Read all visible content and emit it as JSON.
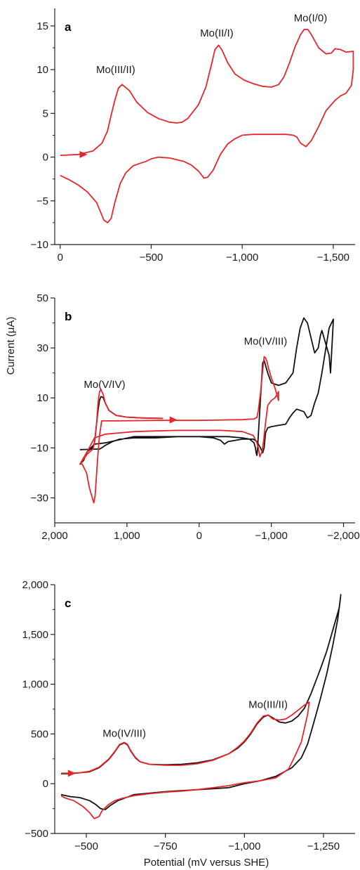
{
  "colors": {
    "red": "#e8262a",
    "black": "#111111",
    "axis": "#222222"
  },
  "xlabel": "Potential (mV versus SHE)",
  "chart_data": [
    {
      "type": "line",
      "panel": "a",
      "xlabel": "",
      "ylabel": "",
      "xlim": [
        30,
        -1620
      ],
      "ylim": [
        -10,
        17
      ],
      "xticks": [
        0,
        -500,
        -1000,
        -1500
      ],
      "xtick_labels": [
        "0",
        "−500",
        "−1,000",
        "−1,500"
      ],
      "yticks": [
        15,
        10,
        5,
        0,
        -5,
        -10
      ],
      "ytick_labels": [
        "15",
        "10",
        "5",
        "0",
        "−5",
        "−10"
      ],
      "annotations": [
        {
          "text": "Mo(III/II)",
          "x": -305,
          "y": 9.6
        },
        {
          "text": "Mo(II/I)",
          "x": -860,
          "y": 13.8
        },
        {
          "text": "Mo(I/0)",
          "x": -1375,
          "y": 15.5
        }
      ],
      "arrow": {
        "x": -130,
        "y": 0.3,
        "color": "red"
      },
      "series": [
        {
          "color": "red",
          "x": [
            0,
            -100,
            -180,
            -230,
            -260,
            -280,
            -300,
            -320,
            -340,
            -380,
            -420,
            -480,
            -540,
            -600,
            -640,
            -670,
            -700,
            -760,
            -800,
            -830,
            -850,
            -870,
            -890,
            -920,
            -960,
            -1010,
            -1060,
            -1110,
            -1160,
            -1200,
            -1230,
            -1260,
            -1290,
            -1320,
            -1340,
            -1360,
            -1380,
            -1420,
            -1460,
            -1490,
            -1510,
            -1540,
            -1570,
            -1610,
            -1610,
            -1600,
            -1570,
            -1540,
            -1510,
            -1460,
            -1420,
            -1380,
            -1350,
            -1320,
            -1300,
            -1280,
            -1240,
            -1200,
            -1150,
            -1100,
            -1060,
            -1000,
            -960,
            -920,
            -880,
            -840,
            -810,
            -790,
            -760,
            -720,
            -680,
            -640,
            -600,
            -540,
            -520,
            -500,
            -480,
            -470,
            -440,
            -400,
            -360,
            -330,
            -300,
            -280,
            -260,
            -240,
            -200,
            -150,
            -100,
            -50,
            0
          ],
          "y": [
            0.2,
            0.3,
            0.7,
            1.6,
            3.0,
            4.8,
            6.5,
            7.9,
            8.3,
            7.6,
            6.3,
            5.1,
            4.4,
            4.0,
            3.9,
            4.0,
            4.4,
            6.0,
            8.0,
            10.5,
            12.3,
            12.8,
            12.2,
            10.8,
            9.5,
            8.8,
            8.4,
            8.1,
            8.0,
            8.3,
            9.2,
            10.8,
            12.6,
            14.0,
            14.6,
            14.6,
            14.0,
            12.5,
            11.8,
            11.9,
            12.4,
            12.3,
            12.0,
            12.1,
            10.0,
            8.2,
            7.3,
            7.0,
            6.5,
            5.3,
            3.5,
            1.9,
            1.2,
            1.6,
            2.3,
            2.5,
            2.6,
            2.6,
            2.6,
            2.6,
            2.6,
            2.5,
            2.1,
            1.5,
            0.3,
            -1.5,
            -2.3,
            -2.4,
            -1.6,
            -0.9,
            -0.5,
            -0.3,
            -0.1,
            0.0,
            -0.1,
            -0.2,
            -0.4,
            -0.5,
            -0.7,
            -1.0,
            -1.8,
            -3.0,
            -5.2,
            -7.0,
            -7.5,
            -7.2,
            -5.2,
            -4.0,
            -3.2,
            -2.6,
            -2.1
          ]
        }
      ]
    },
    {
      "type": "line",
      "panel": "b",
      "xlabel": "",
      "ylabel": "Current (μA)",
      "xlim": [
        2000,
        -2160
      ],
      "ylim": [
        -40,
        50
      ],
      "xticks": [
        2000,
        1000,
        0,
        -1000,
        -2000
      ],
      "xtick_labels": [
        "2,000",
        "1,000",
        "0",
        "−1,000",
        "−2,000"
      ],
      "yticks": [
        50,
        30,
        10,
        -10,
        -30
      ],
      "ytick_labels": [
        "50",
        "30",
        "10",
        "−10",
        "−30"
      ],
      "annotations": [
        {
          "text": "Mo(V/IV)",
          "x": 1310,
          "y": 14
        },
        {
          "text": "Mo(IV/III)",
          "x": -920,
          "y": 31.3
        },
        {
          "text": "",
          "x": 0,
          "y": 0
        }
      ],
      "arrow": {
        "x": 350,
        "y": 1.2,
        "color": "red"
      },
      "series": [
        {
          "color": "black",
          "x": [
            500,
            800,
            1000,
            1150,
            1250,
            1300,
            1330,
            1360,
            1380,
            1400,
            1420,
            1440,
            1450,
            1480,
            1550,
            1650,
            1600,
            1550,
            1450,
            1300,
            1150,
            900,
            600,
            300,
            0,
            -200,
            -300,
            -350,
            -400,
            -600,
            -750,
            -800,
            -850,
            -880,
            -900,
            -920,
            -950,
            -1000,
            -1100,
            -1200,
            -1250,
            -1300,
            -1350,
            -1450,
            -1500,
            -1550,
            -1600,
            -1650,
            -1700,
            -1800,
            -1860,
            -1820,
            -1800,
            -1700,
            -1680,
            -1650,
            -1600,
            -1500,
            -1450,
            -1400,
            -1350,
            -1300,
            -1200,
            -1100,
            -1000,
            -950,
            -900,
            -880,
            -860,
            -840,
            -820,
            -810,
            -800,
            -790,
            -780,
            -760,
            -700,
            -600,
            -400,
            -200,
            0,
            300,
            600,
            900,
            1100,
            1200,
            1300,
            1350,
            1380,
            1400,
            1420,
            1440,
            1460,
            1500,
            1550,
            1650
          ],
          "y": [
            1.8,
            2.0,
            2.3,
            3.0,
            5.0,
            8.0,
            10.2,
            10.5,
            9.0,
            5.0,
            0.0,
            -5.5,
            -8.0,
            -10.0,
            -11.5,
            -16.5,
            -15.0,
            -11.5,
            -8.5,
            -8.0,
            -7.0,
            -5.5,
            -5.5,
            -5.5,
            -5.5,
            -6.0,
            -7.0,
            -8.5,
            -7.5,
            -6.5,
            -6.5,
            -7.5,
            -10.0,
            -12.0,
            -10.0,
            -4.0,
            -2.0,
            -1.5,
            -1.0,
            -0.5,
            2.0,
            4.0,
            5.5,
            4.5,
            2.0,
            3.0,
            8.0,
            12.0,
            20.0,
            38.0,
            41.5,
            20.0,
            27.0,
            37.0,
            35.0,
            30.0,
            28.0,
            40.0,
            42.0,
            38.0,
            30.0,
            20.0,
            16.0,
            15.0,
            16.0,
            20.0,
            25.0,
            24.0,
            15.0,
            5.0,
            -5.0,
            -10.0,
            -13.0,
            -12.0,
            -10.0,
            -8.0,
            -6.5,
            -6.0,
            -5.5,
            -5.5,
            -5.5,
            -5.5,
            -6.0,
            -6.0,
            -6.5,
            -7.5,
            -9.0,
            -10.0,
            -10.5,
            -10.5,
            -10.5,
            -10.5,
            -10.5,
            -10.5,
            -10.6,
            -10.7
          ]
        },
        {
          "color": "red",
          "x": [
            500,
            800,
            1000,
            1150,
            1250,
            1300,
            1330,
            1360,
            1380,
            1400,
            1420,
            1440,
            1450,
            1470,
            1550,
            1650,
            1600,
            1550,
            1450,
            1300,
            1100,
            900,
            600,
            300,
            0,
            -300,
            -600,
            -750,
            -800,
            -820,
            -840,
            -870,
            -890,
            -920,
            -950,
            -1000,
            -1050,
            -1100,
            -1100,
            -1050,
            -1000,
            -960,
            -940,
            -920,
            -900,
            -880,
            -850,
            -820,
            -800,
            -780,
            -760,
            -700,
            -600,
            -400,
            -200,
            0,
            300,
            600,
            900,
            1100,
            1200,
            1300,
            1350,
            1380,
            1400,
            1420,
            1440,
            1460,
            1480,
            1520,
            1560,
            1620,
            1650
          ],
          "y": [
            1.8,
            2.0,
            2.3,
            3.0,
            5.0,
            8.0,
            11.5,
            13.3,
            12.5,
            8.0,
            0.0,
            -6.0,
            -8.0,
            -10.5,
            -12.5,
            -16.5,
            -14.0,
            -11.5,
            -6.0,
            -4.5,
            -4.0,
            -3.5,
            -3.2,
            -3.0,
            -3.0,
            -3.0,
            -3.5,
            -5.0,
            -8.0,
            -10.0,
            -13.5,
            -11.5,
            -8.0,
            0.0,
            7.0,
            9.0,
            10.0,
            12.5,
            9.0,
            14.0,
            18.0,
            22.0,
            24.5,
            26.0,
            26.5,
            21.0,
            12.0,
            5.0,
            2.2,
            1.9,
            1.5,
            1.5,
            1.3,
            1.2,
            1.1,
            1.0,
            1.0,
            1.0,
            0.9,
            0.8,
            0.8,
            0.8,
            0.8,
            -5.0,
            -12.0,
            -20.0,
            -29.0,
            -32.0,
            -30.0,
            -26.0,
            -20.0,
            -16.5,
            -16.5
          ]
        }
      ]
    },
    {
      "type": "line",
      "panel": "c",
      "xlabel": "Potential (mV versus SHE)",
      "ylabel": "",
      "xlim": [
        -400,
        -1350
      ],
      "ylim": [
        -500,
        2000
      ],
      "xticks": [
        -500,
        -750,
        -1000,
        -1250
      ],
      "xtick_labels": [
        "−500",
        "−750",
        "−1,000",
        "−1,250"
      ],
      "yticks": [
        2000,
        1500,
        1000,
        500,
        0,
        -500
      ],
      "ytick_labels": [
        "2,000",
        "1,500",
        "1,000",
        "500",
        "0",
        "−500"
      ],
      "annotations": [
        {
          "text": "Mo(IV/III)",
          "x": -620,
          "y": 470
        },
        {
          "text": "Mo(III/II)",
          "x": -1075,
          "y": 760
        },
        {
          "text": "",
          "x": 0,
          "y": 0
        }
      ],
      "arrow": {
        "x": -455,
        "y": 105,
        "color": "red"
      },
      "series": [
        {
          "color": "black",
          "x": [
            -420,
            -450,
            -480,
            -510,
            -540,
            -570,
            -590,
            -605,
            -620,
            -630,
            -640,
            -655,
            -670,
            -700,
            -750,
            -800,
            -850,
            -900,
            -950,
            -980,
            -1000,
            -1020,
            -1040,
            -1060,
            -1075,
            -1090,
            -1110,
            -1130,
            -1150,
            -1170,
            -1190,
            -1210,
            -1240,
            -1260,
            -1280,
            -1300,
            -1305,
            -1295,
            -1280,
            -1260,
            -1240,
            -1220,
            -1200,
            -1180,
            -1150,
            -1100,
            -1050,
            -1000,
            -950,
            -900,
            -850,
            -800,
            -750,
            -700,
            -650,
            -600,
            -575,
            -560,
            -545,
            -530,
            -510,
            -480,
            -450,
            -420
          ],
          "y": [
            100,
            100,
            110,
            120,
            160,
            240,
            320,
            390,
            410,
            390,
            330,
            260,
            220,
            195,
            190,
            195,
            210,
            240,
            300,
            360,
            420,
            500,
            600,
            670,
            690,
            660,
            620,
            610,
            630,
            680,
            760,
            900,
            1150,
            1330,
            1550,
            1770,
            1900,
            1650,
            1400,
            1100,
            850,
            620,
            400,
            260,
            160,
            75,
            30,
            0,
            -40,
            -50,
            -60,
            -70,
            -80,
            -95,
            -110,
            -170,
            -220,
            -260,
            -250,
            -210,
            -170,
            -140,
            -130,
            -110
          ]
        },
        {
          "color": "red",
          "x": [
            -420,
            -450,
            -480,
            -510,
            -540,
            -570,
            -590,
            -605,
            -620,
            -630,
            -640,
            -655,
            -670,
            -700,
            -750,
            -800,
            -850,
            -900,
            -950,
            -980,
            -1000,
            -1020,
            -1040,
            -1060,
            -1075,
            -1090,
            -1110,
            -1130,
            -1150,
            -1170,
            -1190,
            -1205,
            -1200,
            -1190,
            -1180,
            -1160,
            -1140,
            -1100,
            -1050,
            -1000,
            -950,
            -900,
            -850,
            -800,
            -750,
            -700,
            -650,
            -610,
            -590,
            -570,
            -550,
            -540,
            -525,
            -510,
            -490,
            -460,
            -430,
            -420
          ],
          "y": [
            105,
            105,
            110,
            125,
            165,
            245,
            325,
            395,
            415,
            395,
            335,
            265,
            220,
            195,
            185,
            185,
            200,
            235,
            300,
            370,
            430,
            510,
            610,
            680,
            690,
            650,
            640,
            650,
            690,
            740,
            790,
            820,
            700,
            560,
            420,
            280,
            150,
            60,
            30,
            10,
            -20,
            -40,
            -60,
            -75,
            -85,
            -100,
            -120,
            -150,
            -170,
            -210,
            -270,
            -330,
            -350,
            -290,
            -230,
            -170,
            -140,
            -120
          ]
        }
      ]
    }
  ]
}
